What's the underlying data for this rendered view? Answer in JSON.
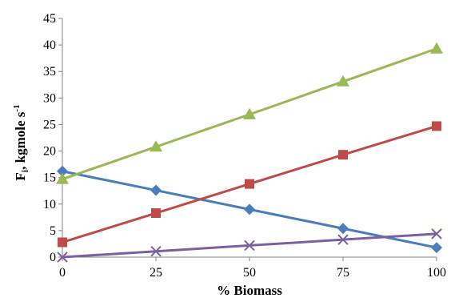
{
  "chart_data": {
    "type": "line",
    "xlabel": "% Biomass",
    "ylabel": {
      "main": "F",
      "sub": "i",
      "rest": ", kgmole s",
      "sup": "-1"
    },
    "x": [
      0,
      25,
      50,
      75,
      100
    ],
    "xticks": [
      "0",
      "25",
      "50",
      "75",
      "100"
    ],
    "yticks": [
      "0",
      "5",
      "10",
      "15",
      "20",
      "25",
      "30",
      "35",
      "40",
      "45"
    ],
    "xlim": [
      0,
      100
    ],
    "ylim": [
      0,
      45
    ],
    "grid": false,
    "legend": "none",
    "series": [
      {
        "marker": "diamond",
        "color": "#4a7ebb",
        "values": [
          16.2,
          12.6,
          9.0,
          5.4,
          1.8
        ]
      },
      {
        "marker": "square",
        "color": "#be4b48",
        "values": [
          2.8,
          8.3,
          13.8,
          19.3,
          24.7
        ]
      },
      {
        "marker": "triangle",
        "color": "#98b954",
        "values": [
          14.7,
          20.8,
          26.9,
          33.1,
          39.3
        ]
      },
      {
        "marker": "x",
        "color": "#7d60a0",
        "values": [
          0.0,
          1.1,
          2.2,
          3.3,
          4.4
        ]
      }
    ]
  }
}
